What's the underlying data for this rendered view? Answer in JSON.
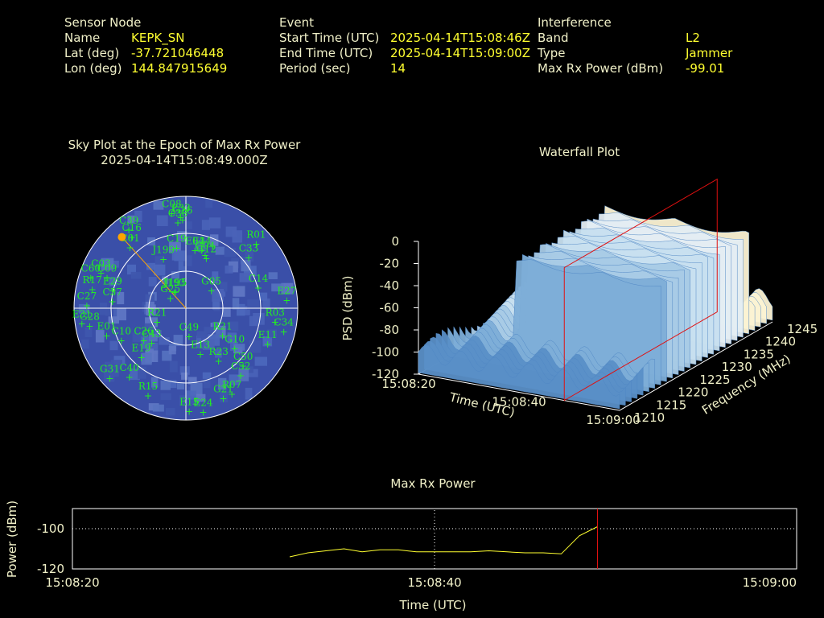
{
  "header": {
    "sensor": {
      "heading": "Sensor Node",
      "name_label": "Name",
      "name_value": "KEPK_SN",
      "lat_label": "Lat (deg)",
      "lat_value": "-37.721046448",
      "lon_label": "Lon (deg)",
      "lon_value": "144.847915649"
    },
    "event": {
      "heading": "Event",
      "start_label": "Start Time (UTC)",
      "start_value": "2025-04-14T15:08:46Z",
      "end_label": "End Time (UTC)",
      "end_value": "2025-04-14T15:09:00Z",
      "period_label": "Period (sec)",
      "period_value": "14"
    },
    "interference": {
      "heading": "Interference",
      "band_label": "Band",
      "band_value": "L2",
      "type_label": "Type",
      "type_value": "Jammer",
      "power_label": "Max Rx Power (dBm)",
      "power_value": "-99.01"
    }
  },
  "chart_data": [
    {
      "type": "scatter",
      "kind": "polar sky plot",
      "title": "Sky Plot at the Epoch of Max Rx Power",
      "subtitle": "2025-04-14T15:08:49.000Z",
      "colors": {
        "background": "#3a4fa8",
        "grid": "#ffffff",
        "satellites": "#22ee22",
        "jammer": "#ffa500"
      },
      "jammer": {
        "azimuth_deg": 318,
        "elevation_deg": 13
      },
      "satellites": [
        {
          "name": "C08",
          "az": 352,
          "el": 8
        },
        {
          "name": "E33",
          "az": 357,
          "el": 12
        },
        {
          "name": "G26",
          "az": 358,
          "el": 14
        },
        {
          "name": "C38",
          "az": 355,
          "el": 16
        },
        {
          "name": "R01",
          "az": 45,
          "el": 10
        },
        {
          "name": "C33",
          "az": 48,
          "el": 22
        },
        {
          "name": "C39",
          "az": 326,
          "el": 8
        },
        {
          "name": "C16",
          "az": 325,
          "el": 14
        },
        {
          "name": "C19",
          "az": 352,
          "el": 36
        },
        {
          "name": "E04",
          "az": 8,
          "el": 38
        },
        {
          "name": "J199",
          "az": 338,
          "el": 42
        },
        {
          "name": "C01",
          "az": 320,
          "el": 20
        },
        {
          "name": "G04",
          "az": 18,
          "el": 40
        },
        {
          "name": "E34",
          "az": 14,
          "el": 37
        },
        {
          "name": "G12",
          "az": 20,
          "el": 42
        },
        {
          "name": "C03",
          "az": 296,
          "el": 14
        },
        {
          "name": "C60",
          "az": 291,
          "el": 8
        },
        {
          "name": "C09",
          "az": 295,
          "el": 20
        },
        {
          "name": "C14",
          "az": 70,
          "el": 28
        },
        {
          "name": "E27",
          "az": 82,
          "el": 8
        },
        {
          "name": "R17",
          "az": 285,
          "el": 12
        },
        {
          "name": "E29",
          "az": 288,
          "el": 28
        },
        {
          "name": "J195",
          "az": 336,
          "el": 70
        },
        {
          "name": "J193",
          "az": 332,
          "el": 70
        },
        {
          "name": "G05",
          "az": 47,
          "el": 62
        },
        {
          "name": "G25",
          "az": 316,
          "el": 72
        },
        {
          "name": "C37",
          "az": 280,
          "el": 30
        },
        {
          "name": "C27",
          "az": 275,
          "el": 10
        },
        {
          "name": "R21",
          "az": 255,
          "el": 66
        },
        {
          "name": "R03",
          "az": 95,
          "el": 18
        },
        {
          "name": "E31",
          "az": 265,
          "el": 6
        },
        {
          "name": "G28",
          "az": 263,
          "el": 12
        },
        {
          "name": "E01",
          "az": 255,
          "el": 24
        },
        {
          "name": "C10",
          "az": 248,
          "el": 34
        },
        {
          "name": "C26",
          "az": 238,
          "el": 50
        },
        {
          "name": "C43",
          "az": 230,
          "el": 54
        },
        {
          "name": "C49",
          "az": 172,
          "el": 72
        },
        {
          "name": "R21b",
          "az": 120,
          "el": 56
        },
        {
          "name": "G10",
          "az": 125,
          "el": 42
        },
        {
          "name": "E11",
          "az": 110,
          "el": 20
        },
        {
          "name": "C34",
          "az": 100,
          "el": 10
        },
        {
          "name": "G31",
          "az": 230,
          "el": 10
        },
        {
          "name": "E19",
          "az": 226,
          "el": 40
        },
        {
          "name": "C40",
          "az": 222,
          "el": 22
        },
        {
          "name": "R15",
          "az": 205,
          "el": 18
        },
        {
          "name": "E13",
          "az": 160,
          "el": 56
        },
        {
          "name": "R23",
          "az": 145,
          "el": 44
        },
        {
          "name": "C50",
          "az": 132,
          "el": 28
        },
        {
          "name": "C52",
          "az": 138,
          "el": 24
        },
        {
          "name": "R07",
          "az": 150,
          "el": 16
        },
        {
          "name": "G21",
          "az": 156,
          "el": 16
        },
        {
          "name": "E15",
          "az": 178,
          "el": 12
        },
        {
          "name": "E24",
          "az": 170,
          "el": 10
        }
      ]
    },
    {
      "type": "area",
      "kind": "3d waterfall surface",
      "title": "Waterfall Plot",
      "xlabel": "Time (UTC)",
      "ylabel": "Frequency (MHz)",
      "zlabel": "PSD (dBm)",
      "x_ticks": [
        "15:08:20",
        "15:08:40",
        "15:09:00"
      ],
      "y_ticks": [
        1210,
        1215,
        1220,
        1225,
        1230,
        1235,
        1240,
        1245
      ],
      "z_ticks": [
        0,
        -20,
        -40,
        -60,
        -80,
        -100,
        -120
      ],
      "zlim": [
        -120,
        0
      ],
      "peak_psd_dbm": -20,
      "floor_psd_dbm": -100,
      "marker_time": "15:08:49"
    },
    {
      "type": "line",
      "title": "Max Rx Power",
      "xlabel": "Time (UTC)",
      "ylabel": "Power (dBm)",
      "x_ticks": [
        "15:08:20",
        "15:08:40",
        "15:09:00"
      ],
      "y_ticks": [
        -100,
        -120
      ],
      "ylim": [
        -120,
        -90
      ],
      "xlim_seconds": [
        0,
        40
      ],
      "marker_x_seconds": 29,
      "colors": {
        "line": "#ffff30",
        "marker": "#e01010"
      },
      "series": [
        {
          "x": [
            12,
            13,
            14,
            15,
            16,
            17,
            18,
            19,
            20,
            21,
            22,
            23,
            24,
            25,
            26,
            27,
            28,
            29
          ],
          "y": [
            -114,
            -112,
            -111,
            -110,
            -111.5,
            -110.5,
            -110.5,
            -111.5,
            -111.5,
            -111.5,
            -111.5,
            -111,
            -111.5,
            -112,
            -112,
            -112.5,
            -103.5,
            -99.01
          ]
        }
      ]
    }
  ]
}
